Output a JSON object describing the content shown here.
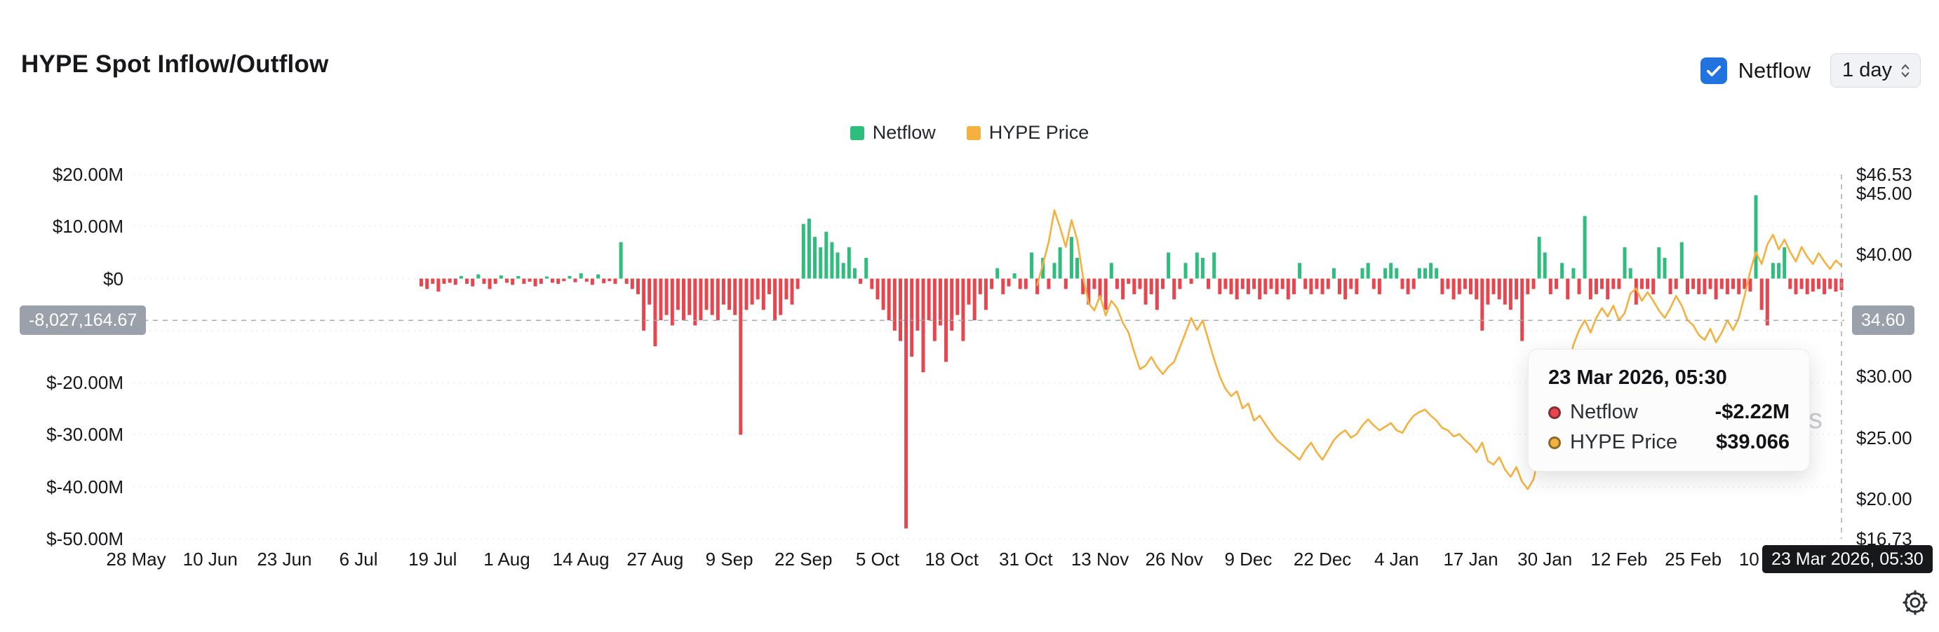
{
  "header": {
    "title": "HYPE Spot Inflow/Outflow",
    "netflow_toggle": {
      "label": "Netflow",
      "checked": true
    },
    "interval_select": {
      "value": "1 day"
    }
  },
  "legend": [
    {
      "label": "Netflow",
      "color": "#2ebd7c"
    },
    {
      "label": "HYPE Price",
      "color": "#f4b13f"
    }
  ],
  "colors": {
    "positive": "#2ebd7c",
    "negative": "#e8464e",
    "price_line": "#f4b13f",
    "checkbox_blue": "#2272e0",
    "axis_badge_bg": "#9ba1ab",
    "x_badge_bg": "#17181b",
    "grid": "#ebedf0",
    "crosshair": "#a6abb3"
  },
  "tooltip": {
    "title": "23 Mar 2026, 05:30",
    "rows": [
      {
        "label": "Netflow",
        "value": "-$2.22M",
        "dot_color": "#e8464e"
      },
      {
        "label": "HYPE Price",
        "value": "$39.066",
        "dot_color": "#f4b13f"
      }
    ]
  },
  "crosshair": {
    "left_axis_badge": "-8,027,164.67",
    "right_axis_badge": "34.60",
    "x_axis_badge": "23 Mar 2026, 05:30"
  },
  "watermark_visible_text": "s",
  "chart_data": {
    "type": "bar",
    "title": "HYPE Spot Inflow/Outflow",
    "legend_position": "top-center",
    "grid": true,
    "x_axis": {
      "unit": "date",
      "range_days": [
        0,
        299
      ],
      "ticks": [
        {
          "day": 0,
          "label": "28 May"
        },
        {
          "day": 13,
          "label": "10 Jun"
        },
        {
          "day": 26,
          "label": "23 Jun"
        },
        {
          "day": 39,
          "label": "6 Jul"
        },
        {
          "day": 52,
          "label": "19 Jul"
        },
        {
          "day": 65,
          "label": "1 Aug"
        },
        {
          "day": 78,
          "label": "14 Aug"
        },
        {
          "day": 91,
          "label": "27 Aug"
        },
        {
          "day": 104,
          "label": "9 Sep"
        },
        {
          "day": 117,
          "label": "22 Sep"
        },
        {
          "day": 130,
          "label": "5 Oct"
        },
        {
          "day": 143,
          "label": "18 Oct"
        },
        {
          "day": 156,
          "label": "31 Oct"
        },
        {
          "day": 169,
          "label": "13 Nov"
        },
        {
          "day": 182,
          "label": "26 Nov"
        },
        {
          "day": 195,
          "label": "9 Dec"
        },
        {
          "day": 208,
          "label": "22 Dec"
        },
        {
          "day": 221,
          "label": "4 Jan"
        },
        {
          "day": 234,
          "label": "17 Jan"
        },
        {
          "day": 247,
          "label": "30 Jan"
        },
        {
          "day": 260,
          "label": "12 Feb"
        },
        {
          "day": 273,
          "label": "25 Feb"
        },
        {
          "day": 286,
          "label": "10 Mar"
        }
      ]
    },
    "left_axis": {
      "label_unit": "USD millions (netflow)",
      "range_m": [
        -50,
        20
      ],
      "ticks": [
        {
          "v": 20,
          "label": "$20.00M"
        },
        {
          "v": 10,
          "label": "$10.00M"
        },
        {
          "v": 0,
          "label": "$0"
        },
        {
          "v": -10,
          "label": "$-10.00M",
          "hidden": true
        },
        {
          "v": -20,
          "label": "$-20.00M"
        },
        {
          "v": -30,
          "label": "$-30.00M"
        },
        {
          "v": -40,
          "label": "$-40.00M"
        },
        {
          "v": -50,
          "label": "$-50.00M"
        }
      ]
    },
    "right_axis": {
      "label_unit": "USD (price)",
      "range": [
        16.73,
        46.53
      ],
      "ticks": [
        {
          "p": 46.53,
          "label": "$46.53"
        },
        {
          "p": 45,
          "label": "$45.00"
        },
        {
          "p": 40,
          "label": "$40.00"
        },
        {
          "p": 35,
          "label": "$35.00",
          "hidden": true
        },
        {
          "p": 30,
          "label": "$30.00"
        },
        {
          "p": 25,
          "label": "$25.00"
        },
        {
          "p": 20,
          "label": "$20.00"
        },
        {
          "p": 16.73,
          "label": "$16.73"
        }
      ]
    },
    "crosshair": {
      "day": 299,
      "value_m": -8.02716467,
      "price": 34.6
    },
    "series": [
      {
        "name": "Netflow",
        "type": "bar",
        "unit": "USD millions",
        "start_day": 50,
        "values_m": [
          -1.5,
          -2,
          -1,
          -2.5,
          -1,
          -0.8,
          -1.2,
          0.5,
          -1,
          -1.5,
          0.8,
          -1,
          -2,
          -1,
          0.6,
          -0.8,
          -1.2,
          0.5,
          -1,
          -0.6,
          -1.5,
          -1,
          0.4,
          -0.8,
          -1,
          -0.5,
          0.5,
          -0.7,
          1,
          -0.6,
          -1.2,
          0.8,
          -0.9,
          -0.5,
          -1,
          7,
          -1,
          -2,
          -3,
          -10,
          -5,
          -13,
          -8,
          -7,
          -9,
          -6,
          -8,
          -7,
          -9,
          -8,
          -6,
          -7,
          -8,
          -5,
          -6,
          -7,
          -30,
          -6,
          -5,
          -4,
          -6,
          -3,
          -8,
          -7,
          -4,
          -5,
          -2,
          10.5,
          11.5,
          8,
          6,
          9,
          7,
          5,
          3,
          6,
          2,
          -1,
          4,
          -2,
          -4,
          -6,
          -8,
          -10,
          -12,
          -48,
          -15,
          -10,
          -18,
          -8,
          -12,
          -9,
          -16,
          -10,
          -7,
          -12,
          -5,
          -8,
          -3,
          -6,
          -2,
          2,
          -3,
          -1.5,
          1,
          -2,
          -2,
          5,
          -3,
          4,
          -2,
          3,
          6,
          -2,
          8,
          4,
          -3,
          -5,
          -2,
          -4,
          -6,
          3,
          -2,
          -4,
          -1,
          -3,
          -2,
          -5,
          -3,
          -6,
          -2,
          5,
          -4,
          -2,
          3,
          -1,
          5,
          4,
          -2,
          5,
          -3,
          -2,
          -3,
          -4,
          -2,
          -3,
          -2,
          -4,
          -3,
          -2,
          -3,
          -2,
          -4,
          -3,
          3,
          -2,
          -3,
          -2,
          -3,
          -2,
          2,
          -3,
          -4,
          -2,
          -3,
          2,
          3,
          -2,
          -3,
          2,
          3,
          2,
          -2,
          -3,
          -2,
          2,
          2,
          3,
          2,
          -3,
          -2,
          -4,
          -3,
          -2,
          -3,
          -4,
          -10,
          -5,
          -3,
          -4,
          -5,
          -6,
          -4,
          -12,
          -3,
          -2,
          8,
          5,
          -3,
          -2,
          3,
          -4,
          2,
          -3,
          12,
          -4,
          -3,
          -2,
          -4,
          -2,
          -2,
          6,
          2,
          -5,
          -2,
          -2,
          -3,
          6,
          4,
          -3,
          -2,
          7,
          -3,
          -2,
          -3,
          -3,
          -2,
          -4,
          -2,
          -3,
          -2,
          -3,
          -2,
          -2.5,
          16,
          -6,
          -9,
          3,
          3,
          6,
          -2,
          -3,
          -2,
          -3,
          -2.5,
          -2,
          -3,
          -2,
          -2.5,
          -2.22
        ]
      },
      {
        "name": "HYPE Price",
        "type": "line",
        "unit": "USD",
        "points_day_price": [
          [
            158,
            37.5
          ],
          [
            159,
            39.2
          ],
          [
            160,
            41.0
          ],
          [
            161,
            43.6
          ],
          [
            162,
            42.2
          ],
          [
            163,
            40.6
          ],
          [
            164,
            42.8
          ],
          [
            165,
            41.2
          ],
          [
            166,
            38.2
          ],
          [
            167,
            36.0
          ],
          [
            168,
            35.4
          ],
          [
            169,
            36.6
          ],
          [
            170,
            35.0
          ],
          [
            171,
            36.2
          ],
          [
            172,
            35.6
          ],
          [
            173,
            34.4
          ],
          [
            174,
            33.6
          ],
          [
            175,
            32.0
          ],
          [
            176,
            30.6
          ],
          [
            177,
            30.9
          ],
          [
            178,
            31.6
          ],
          [
            179,
            30.8
          ],
          [
            180,
            30.2
          ],
          [
            181,
            30.8
          ],
          [
            182,
            31.2
          ],
          [
            183,
            32.4
          ],
          [
            184,
            33.6
          ],
          [
            185,
            34.8
          ],
          [
            186,
            33.8
          ],
          [
            187,
            34.6
          ],
          [
            188,
            33.0
          ],
          [
            189,
            31.4
          ],
          [
            190,
            30.0
          ],
          [
            191,
            29.0
          ],
          [
            192,
            28.4
          ],
          [
            193,
            28.8
          ],
          [
            194,
            27.4
          ],
          [
            195,
            27.8
          ],
          [
            196,
            26.4
          ],
          [
            197,
            26.8
          ],
          [
            198,
            26.1
          ],
          [
            199,
            25.4
          ],
          [
            200,
            24.8
          ],
          [
            201,
            24.4
          ],
          [
            202,
            24.0
          ],
          [
            203,
            23.6
          ],
          [
            204,
            23.2
          ],
          [
            205,
            24.0
          ],
          [
            206,
            24.6
          ],
          [
            207,
            23.8
          ],
          [
            208,
            23.2
          ],
          [
            209,
            24.0
          ],
          [
            210,
            24.8
          ],
          [
            211,
            25.3
          ],
          [
            212,
            25.6
          ],
          [
            213,
            25.0
          ],
          [
            214,
            25.3
          ],
          [
            215,
            26.0
          ],
          [
            216,
            26.5
          ],
          [
            217,
            26.0
          ],
          [
            218,
            25.6
          ],
          [
            219,
            25.9
          ],
          [
            220,
            26.2
          ],
          [
            221,
            25.6
          ],
          [
            222,
            25.4
          ],
          [
            223,
            26.2
          ],
          [
            224,
            26.8
          ],
          [
            225,
            27.1
          ],
          [
            226,
            27.3
          ],
          [
            227,
            26.8
          ],
          [
            228,
            26.4
          ],
          [
            229,
            25.8
          ],
          [
            230,
            25.6
          ],
          [
            231,
            25.1
          ],
          [
            232,
            25.3
          ],
          [
            233,
            24.8
          ],
          [
            234,
            24.4
          ],
          [
            235,
            23.8
          ],
          [
            236,
            24.6
          ],
          [
            237,
            23.1
          ],
          [
            238,
            22.8
          ],
          [
            239,
            23.4
          ],
          [
            240,
            22.4
          ],
          [
            241,
            21.8
          ],
          [
            242,
            22.6
          ],
          [
            243,
            21.4
          ],
          [
            244,
            20.8
          ],
          [
            245,
            21.6
          ],
          [
            246,
            23.6
          ],
          [
            247,
            26.2
          ],
          [
            248,
            28.6
          ],
          [
            249,
            30.2
          ],
          [
            250,
            31.6
          ],
          [
            251,
            30.6
          ],
          [
            252,
            32.6
          ],
          [
            253,
            33.8
          ],
          [
            254,
            34.6
          ],
          [
            255,
            33.6
          ],
          [
            256,
            34.8
          ],
          [
            257,
            35.6
          ],
          [
            258,
            34.9
          ],
          [
            259,
            35.8
          ],
          [
            260,
            34.6
          ],
          [
            261,
            35.2
          ],
          [
            262,
            36.8
          ],
          [
            263,
            37.2
          ],
          [
            264,
            36.2
          ],
          [
            265,
            36.9
          ],
          [
            266,
            36.2
          ],
          [
            267,
            35.4
          ],
          [
            268,
            34.8
          ],
          [
            269,
            35.6
          ],
          [
            270,
            36.6
          ],
          [
            271,
            35.8
          ],
          [
            272,
            34.6
          ],
          [
            273,
            34.2
          ],
          [
            274,
            33.4
          ],
          [
            275,
            33.0
          ],
          [
            276,
            33.9
          ],
          [
            277,
            32.8
          ],
          [
            278,
            33.6
          ],
          [
            279,
            34.6
          ],
          [
            280,
            33.8
          ],
          [
            281,
            34.8
          ],
          [
            282,
            36.6
          ],
          [
            283,
            38.6
          ],
          [
            284,
            40.2
          ],
          [
            285,
            39.2
          ],
          [
            286,
            40.8
          ],
          [
            287,
            41.6
          ],
          [
            288,
            40.4
          ],
          [
            289,
            41.2
          ],
          [
            290,
            40.2
          ],
          [
            291,
            39.4
          ],
          [
            292,
            40.6
          ],
          [
            293,
            39.8
          ],
          [
            294,
            39.2
          ],
          [
            295,
            40.1
          ],
          [
            296,
            39.4
          ],
          [
            297,
            38.8
          ],
          [
            298,
            39.5
          ],
          [
            299,
            39.066
          ]
        ]
      }
    ]
  }
}
